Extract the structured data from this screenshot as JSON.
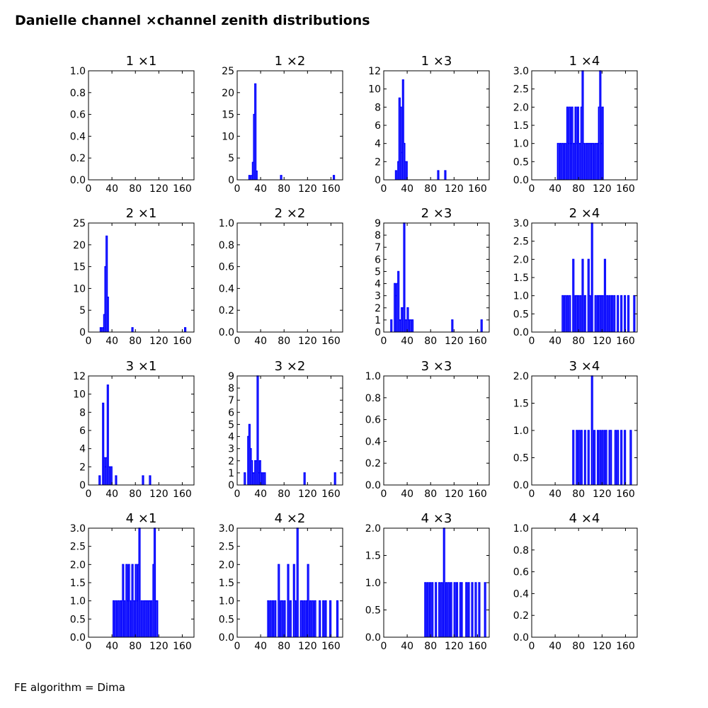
{
  "figure": {
    "title": "Danielle channel ×channel zenith distributions",
    "footnote": "FE algorithm = Dima",
    "line_color": "#0000ff"
  },
  "chart_data": [
    {
      "type": "histogram",
      "title": "1 ×1",
      "xlim": [
        0,
        180
      ],
      "ylim": [
        0,
        1.0
      ],
      "xticks": [
        0,
        40,
        80,
        120,
        160
      ],
      "yticks": [
        0.0,
        0.2,
        0.4,
        0.6,
        0.8,
        1.0
      ],
      "ytick_labels": [
        "0.0",
        "0.2",
        "0.4",
        "0.6",
        "0.8",
        "1.0"
      ],
      "bin_width": 2,
      "bins": []
    },
    {
      "type": "histogram",
      "title": "1 ×2",
      "xlim": [
        0,
        180
      ],
      "ylim": [
        0,
        25
      ],
      "xticks": [
        0,
        40,
        80,
        120,
        160
      ],
      "yticks": [
        0,
        5,
        10,
        15,
        20,
        25
      ],
      "ytick_labels": [
        "0",
        "5",
        "10",
        "15",
        "20",
        "25"
      ],
      "bin_width": 2,
      "bins": [
        [
          20,
          1
        ],
        [
          24,
          1
        ],
        [
          26,
          4
        ],
        [
          28,
          15
        ],
        [
          30,
          22
        ],
        [
          32,
          2
        ],
        [
          74,
          1
        ],
        [
          164,
          1
        ]
      ]
    },
    {
      "type": "histogram",
      "title": "1 ×3",
      "xlim": [
        0,
        180
      ],
      "ylim": [
        0,
        12
      ],
      "xticks": [
        0,
        40,
        80,
        120,
        160
      ],
      "yticks": [
        0,
        2,
        4,
        6,
        8,
        10,
        12
      ],
      "ytick_labels": [
        "0",
        "2",
        "4",
        "6",
        "8",
        "10",
        "12"
      ],
      "bin_width": 2,
      "bins": [
        [
          20,
          1
        ],
        [
          24,
          2
        ],
        [
          26,
          9
        ],
        [
          28,
          8
        ],
        [
          30,
          3
        ],
        [
          32,
          11
        ],
        [
          34,
          4
        ],
        [
          36,
          2
        ],
        [
          38,
          2
        ],
        [
          92,
          1
        ],
        [
          104,
          1
        ]
      ]
    },
    {
      "type": "histogram",
      "title": "1 ×4",
      "xlim": [
        0,
        180
      ],
      "ylim": [
        0,
        3.0
      ],
      "xticks": [
        0,
        40,
        80,
        120,
        160
      ],
      "yticks": [
        0.0,
        0.5,
        1.0,
        1.5,
        2.0,
        2.5,
        3.0
      ],
      "ytick_labels": [
        "0.0",
        "0.5",
        "1.0",
        "1.5",
        "2.0",
        "2.5",
        "3.0"
      ],
      "bin_width": 2,
      "bins": [
        [
          44,
          1
        ],
        [
          48,
          1
        ],
        [
          52,
          1
        ],
        [
          56,
          1
        ],
        [
          60,
          2
        ],
        [
          62,
          1
        ],
        [
          64,
          2
        ],
        [
          66,
          1
        ],
        [
          68,
          2
        ],
        [
          70,
          1
        ],
        [
          72,
          1
        ],
        [
          74,
          2
        ],
        [
          76,
          1
        ],
        [
          78,
          2
        ],
        [
          80,
          1
        ],
        [
          82,
          1
        ],
        [
          84,
          2
        ],
        [
          86,
          3
        ],
        [
          88,
          1
        ],
        [
          92,
          1
        ],
        [
          94,
          1
        ],
        [
          96,
          1
        ],
        [
          98,
          1
        ],
        [
          100,
          1
        ],
        [
          102,
          1
        ],
        [
          104,
          1
        ],
        [
          108,
          1
        ],
        [
          110,
          1
        ],
        [
          112,
          1
        ],
        [
          114,
          2
        ],
        [
          116,
          3
        ],
        [
          118,
          1
        ],
        [
          120,
          2
        ]
      ]
    },
    {
      "type": "histogram",
      "title": "2 ×1",
      "xlim": [
        0,
        180
      ],
      "ylim": [
        0,
        25
      ],
      "xticks": [
        0,
        40,
        80,
        120,
        160
      ],
      "yticks": [
        0,
        5,
        10,
        15,
        20,
        25
      ],
      "ytick_labels": [
        "0",
        "5",
        "10",
        "15",
        "20",
        "25"
      ],
      "bin_width": 2,
      "bins": [
        [
          20,
          1
        ],
        [
          24,
          1
        ],
        [
          26,
          4
        ],
        [
          28,
          15
        ],
        [
          30,
          22
        ],
        [
          32,
          8
        ],
        [
          74,
          1
        ],
        [
          164,
          1
        ]
      ]
    },
    {
      "type": "histogram",
      "title": "2 ×2",
      "xlim": [
        0,
        180
      ],
      "ylim": [
        0,
        1.0
      ],
      "xticks": [
        0,
        40,
        80,
        120,
        160
      ],
      "yticks": [
        0.0,
        0.2,
        0.4,
        0.6,
        0.8,
        1.0
      ],
      "ytick_labels": [
        "0.0",
        "0.2",
        "0.4",
        "0.6",
        "0.8",
        "1.0"
      ],
      "bin_width": 2,
      "bins": []
    },
    {
      "type": "histogram",
      "title": "2 ×3",
      "xlim": [
        0,
        180
      ],
      "ylim": [
        0,
        9
      ],
      "xticks": [
        0,
        40,
        80,
        120,
        160
      ],
      "yticks": [
        0,
        1,
        2,
        3,
        4,
        5,
        6,
        7,
        8,
        9
      ],
      "ytick_labels": [
        "0",
        "1",
        "2",
        "3",
        "4",
        "5",
        "6",
        "7",
        "8",
        "9"
      ],
      "bin_width": 2,
      "bins": [
        [
          12,
          1
        ],
        [
          18,
          4
        ],
        [
          20,
          3
        ],
        [
          22,
          4
        ],
        [
          24,
          5
        ],
        [
          26,
          1
        ],
        [
          28,
          1
        ],
        [
          30,
          2
        ],
        [
          32,
          2
        ],
        [
          34,
          9
        ],
        [
          36,
          1
        ],
        [
          38,
          1
        ],
        [
          40,
          2
        ],
        [
          42,
          1
        ],
        [
          44,
          1
        ],
        [
          46,
          1
        ],
        [
          48,
          1
        ],
        [
          116,
          1
        ],
        [
          166,
          1
        ]
      ]
    },
    {
      "type": "histogram",
      "title": "2 ×4",
      "xlim": [
        0,
        180
      ],
      "ylim": [
        0,
        3.0
      ],
      "xticks": [
        0,
        40,
        80,
        120,
        160
      ],
      "yticks": [
        0.0,
        0.5,
        1.0,
        1.5,
        2.0,
        2.5,
        3.0
      ],
      "ytick_labels": [
        "0.0",
        "0.5",
        "1.0",
        "1.5",
        "2.0",
        "2.5",
        "3.0"
      ],
      "bin_width": 2,
      "bins": [
        [
          52,
          1
        ],
        [
          56,
          1
        ],
        [
          60,
          1
        ],
        [
          64,
          1
        ],
        [
          70,
          2
        ],
        [
          74,
          1
        ],
        [
          76,
          1
        ],
        [
          78,
          1
        ],
        [
          82,
          1
        ],
        [
          86,
          2
        ],
        [
          90,
          1
        ],
        [
          96,
          2
        ],
        [
          98,
          1
        ],
        [
          102,
          3
        ],
        [
          108,
          1
        ],
        [
          112,
          1
        ],
        [
          114,
          1
        ],
        [
          116,
          1
        ],
        [
          118,
          1
        ],
        [
          120,
          1
        ],
        [
          124,
          2
        ],
        [
          128,
          1
        ],
        [
          132,
          1
        ],
        [
          136,
          1
        ],
        [
          140,
          1
        ],
        [
          146,
          1
        ],
        [
          152,
          1
        ],
        [
          158,
          1
        ],
        [
          164,
          1
        ],
        [
          174,
          1
        ]
      ]
    },
    {
      "type": "histogram",
      "title": "3 ×1",
      "xlim": [
        0,
        180
      ],
      "ylim": [
        0,
        12
      ],
      "xticks": [
        0,
        40,
        80,
        120,
        160
      ],
      "yticks": [
        0,
        2,
        4,
        6,
        8,
        10,
        12
      ],
      "ytick_labels": [
        "0",
        "2",
        "4",
        "6",
        "8",
        "10",
        "12"
      ],
      "bin_width": 2,
      "bins": [
        [
          18,
          1
        ],
        [
          24,
          9
        ],
        [
          26,
          3
        ],
        [
          28,
          2
        ],
        [
          30,
          3
        ],
        [
          32,
          11
        ],
        [
          34,
          2
        ],
        [
          36,
          2
        ],
        [
          38,
          2
        ],
        [
          46,
          1
        ],
        [
          92,
          1
        ],
        [
          104,
          1
        ]
      ]
    },
    {
      "type": "histogram",
      "title": "3 ×2",
      "xlim": [
        0,
        180
      ],
      "ylim": [
        0,
        9
      ],
      "xticks": [
        0,
        40,
        80,
        120,
        160
      ],
      "yticks": [
        0,
        1,
        2,
        3,
        4,
        5,
        6,
        7,
        8,
        9
      ],
      "ytick_labels": [
        "0",
        "1",
        "2",
        "3",
        "4",
        "5",
        "6",
        "7",
        "8",
        "9"
      ],
      "bin_width": 2,
      "bins": [
        [
          12,
          1
        ],
        [
          18,
          4
        ],
        [
          20,
          5
        ],
        [
          22,
          3
        ],
        [
          24,
          2
        ],
        [
          26,
          1
        ],
        [
          28,
          1
        ],
        [
          30,
          2
        ],
        [
          32,
          2
        ],
        [
          34,
          9
        ],
        [
          36,
          1
        ],
        [
          38,
          2
        ],
        [
          40,
          1
        ],
        [
          42,
          1
        ],
        [
          44,
          1
        ],
        [
          46,
          1
        ],
        [
          114,
          1
        ],
        [
          166,
          1
        ]
      ]
    },
    {
      "type": "histogram",
      "title": "3 ×3",
      "xlim": [
        0,
        180
      ],
      "ylim": [
        0,
        1.0
      ],
      "xticks": [
        0,
        40,
        80,
        120,
        160
      ],
      "yticks": [
        0.0,
        0.2,
        0.4,
        0.6,
        0.8,
        1.0
      ],
      "ytick_labels": [
        "0.0",
        "0.2",
        "0.4",
        "0.6",
        "0.8",
        "1.0"
      ],
      "bin_width": 2,
      "bins": []
    },
    {
      "type": "histogram",
      "title": "3 ×4",
      "xlim": [
        0,
        180
      ],
      "ylim": [
        0,
        2.0
      ],
      "xticks": [
        0,
        40,
        80,
        120,
        160
      ],
      "yticks": [
        0.0,
        0.5,
        1.0,
        1.5,
        2.0
      ],
      "ytick_labels": [
        "0.0",
        "0.5",
        "1.0",
        "1.5",
        "2.0"
      ],
      "bin_width": 2,
      "bins": [
        [
          70,
          1
        ],
        [
          76,
          1
        ],
        [
          80,
          1
        ],
        [
          84,
          1
        ],
        [
          90,
          1
        ],
        [
          96,
          1
        ],
        [
          102,
          2
        ],
        [
          106,
          1
        ],
        [
          112,
          1
        ],
        [
          116,
          1
        ],
        [
          120,
          1
        ],
        [
          124,
          1
        ],
        [
          126,
          1
        ],
        [
          132,
          1
        ],
        [
          134,
          1
        ],
        [
          142,
          1
        ],
        [
          146,
          1
        ],
        [
          152,
          1
        ],
        [
          158,
          1
        ],
        [
          168,
          1
        ]
      ]
    },
    {
      "type": "histogram",
      "title": "4 ×1",
      "xlim": [
        0,
        180
      ],
      "ylim": [
        0,
        3.0
      ],
      "xticks": [
        0,
        40,
        80,
        120,
        160
      ],
      "yticks": [
        0.0,
        0.5,
        1.0,
        1.5,
        2.0,
        2.5,
        3.0
      ],
      "ytick_labels": [
        "0.0",
        "0.5",
        "1.0",
        "1.5",
        "2.0",
        "2.5",
        "3.0"
      ],
      "bin_width": 2,
      "bins": [
        [
          42,
          1
        ],
        [
          46,
          1
        ],
        [
          50,
          1
        ],
        [
          54,
          1
        ],
        [
          56,
          1
        ],
        [
          58,
          2
        ],
        [
          60,
          1
        ],
        [
          64,
          2
        ],
        [
          66,
          1
        ],
        [
          68,
          2
        ],
        [
          70,
          1
        ],
        [
          74,
          2
        ],
        [
          76,
          1
        ],
        [
          78,
          1
        ],
        [
          80,
          2
        ],
        [
          82,
          1
        ],
        [
          84,
          2
        ],
        [
          86,
          3
        ],
        [
          90,
          1
        ],
        [
          94,
          1
        ],
        [
          96,
          1
        ],
        [
          98,
          1
        ],
        [
          100,
          1
        ],
        [
          102,
          1
        ],
        [
          104,
          1
        ],
        [
          106,
          1
        ],
        [
          110,
          2
        ],
        [
          112,
          3
        ],
        [
          114,
          1
        ],
        [
          116,
          1
        ]
      ]
    },
    {
      "type": "histogram",
      "title": "4 ×2",
      "xlim": [
        0,
        180
      ],
      "ylim": [
        0,
        3.0
      ],
      "xticks": [
        0,
        40,
        80,
        120,
        160
      ],
      "yticks": [
        0.0,
        0.5,
        1.0,
        1.5,
        2.0,
        2.5,
        3.0
      ],
      "ytick_labels": [
        "0.0",
        "0.5",
        "1.0",
        "1.5",
        "2.0",
        "2.5",
        "3.0"
      ],
      "bin_width": 2,
      "bins": [
        [
          52,
          1
        ],
        [
          56,
          1
        ],
        [
          60,
          1
        ],
        [
          64,
          1
        ],
        [
          70,
          2
        ],
        [
          74,
          1
        ],
        [
          76,
          1
        ],
        [
          80,
          1
        ],
        [
          86,
          2
        ],
        [
          90,
          1
        ],
        [
          96,
          2
        ],
        [
          98,
          1
        ],
        [
          102,
          3
        ],
        [
          108,
          1
        ],
        [
          110,
          1
        ],
        [
          114,
          1
        ],
        [
          118,
          1
        ],
        [
          120,
          2
        ],
        [
          124,
          1
        ],
        [
          128,
          1
        ],
        [
          132,
          1
        ],
        [
          140,
          1
        ],
        [
          146,
          1
        ],
        [
          150,
          1
        ],
        [
          158,
          1
        ],
        [
          170,
          1
        ]
      ]
    },
    {
      "type": "histogram",
      "title": "4 ×3",
      "xlim": [
        0,
        180
      ],
      "ylim": [
        0,
        2.0
      ],
      "xticks": [
        0,
        40,
        80,
        120,
        160
      ],
      "yticks": [
        0.0,
        0.5,
        1.0,
        1.5,
        2.0
      ],
      "ytick_labels": [
        "0.0",
        "0.5",
        "1.0",
        "1.5",
        "2.0"
      ],
      "bin_width": 2,
      "bins": [
        [
          70,
          1
        ],
        [
          74,
          1
        ],
        [
          78,
          1
        ],
        [
          82,
          1
        ],
        [
          88,
          1
        ],
        [
          94,
          1
        ],
        [
          98,
          1
        ],
        [
          102,
          2
        ],
        [
          106,
          1
        ],
        [
          110,
          1
        ],
        [
          114,
          1
        ],
        [
          120,
          1
        ],
        [
          124,
          1
        ],
        [
          130,
          1
        ],
        [
          132,
          1
        ],
        [
          140,
          1
        ],
        [
          144,
          1
        ],
        [
          150,
          1
        ],
        [
          156,
          1
        ],
        [
          162,
          1
        ],
        [
          172,
          1
        ]
      ]
    },
    {
      "type": "histogram",
      "title": "4 ×4",
      "xlim": [
        0,
        180
      ],
      "ylim": [
        0,
        1.0
      ],
      "xticks": [
        0,
        40,
        80,
        120,
        160
      ],
      "yticks": [
        0.0,
        0.2,
        0.4,
        0.6,
        0.8,
        1.0
      ],
      "ytick_labels": [
        "0.0",
        "0.2",
        "0.4",
        "0.6",
        "0.8",
        "1.0"
      ],
      "bin_width": 2,
      "bins": []
    }
  ]
}
